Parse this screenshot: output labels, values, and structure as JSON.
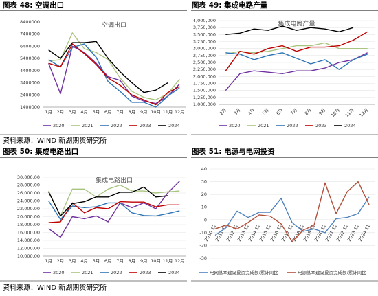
{
  "chart_data": [
    {
      "type": "line",
      "title": "图表 48: 空调出口",
      "inner_title": "空调出口",
      "source": "资料来源：WIND 新湖期货研究所",
      "categories": [
        "1月",
        "2月",
        "3月",
        "4月",
        "5月",
        "6月",
        "7月",
        "8月",
        "9月",
        "10月",
        "11月",
        "12月"
      ],
      "ylim": [
        1400000,
        8400000
      ],
      "yticks": [
        1400000,
        2400000,
        3400000,
        4400000,
        5400000,
        6400000,
        7400000,
        8400000
      ],
      "grid": false,
      "series": [
        {
          "name": "2020",
          "color": "#7030a0",
          "values": [
            5000000,
            2500000,
            6400000,
            5900000,
            5000000,
            3900000,
            3600000,
            2300000,
            1900000,
            1700000,
            2300000,
            3300000
          ]
        },
        {
          "name": "2021",
          "color": "#a9c47f",
          "values": [
            5200000,
            5300000,
            7500000,
            6200000,
            5900000,
            5300000,
            3800000,
            2700000,
            2200000,
            2000000,
            2500000,
            3700000
          ]
        },
        {
          "name": "2022",
          "color": "#2e75b6",
          "values": [
            5300000,
            4700000,
            6300000,
            6600000,
            5500000,
            3500000,
            2700000,
            1800000,
            1800000,
            1400000,
            2300000,
            3000000
          ]
        },
        {
          "name": "2023",
          "color": "#c00000",
          "values": [
            5000000,
            4700000,
            6600000,
            5800000,
            4900000,
            3800000,
            3200000,
            2400000,
            2000000,
            1600000,
            2600000,
            3100000
          ]
        },
        {
          "name": "2024",
          "color": "#000000",
          "values": [
            6100000,
            5400000,
            6700000,
            6700000,
            6800000,
            5400000,
            4300000,
            3400000,
            2600000,
            2800000,
            3400000,
            null
          ]
        }
      ]
    },
    {
      "type": "line",
      "title": "图表 49: 集成电路产量",
      "inner_title": "集成电路产量",
      "categories": [
        "2月",
        "3月",
        "4月",
        "5月",
        "6月",
        "7月",
        "8月",
        "9月",
        "10月",
        "11月",
        "12月"
      ],
      "ylim": [
        1000000,
        4000000
      ],
      "yticks": [
        {
          "value": 1000000,
          "label": "1,000,000"
        },
        {
          "value": 1250000,
          "label": "1,250,000"
        },
        {
          "value": 1500000,
          "label": "1,500,000"
        },
        {
          "value": 1750000,
          "label": "1,750,000"
        },
        {
          "value": 2000000,
          "label": "2,000,000"
        },
        {
          "value": 2250000,
          "label": "2,250,000"
        },
        {
          "value": 2500000,
          "label": "2,500,000"
        },
        {
          "value": 2750000,
          "label": "2,750,000"
        },
        {
          "value": 3000000,
          "label": "3,000,000"
        },
        {
          "value": 3250000,
          "label": "3,250,000"
        },
        {
          "value": 3500000,
          "label": "3,500,000"
        },
        {
          "value": 3750000,
          "label": "3,750,000"
        },
        {
          "value": 4000000,
          "label": "4,000,000"
        }
      ],
      "grid": true,
      "series": [
        {
          "name": "2020",
          "color": "#7030a0",
          "values": [
            1500000,
            2100000,
            2200000,
            2150000,
            2100000,
            2200000,
            2200000,
            2300000,
            2500000,
            2600000,
            2850000
          ]
        },
        {
          "name": "2021",
          "color": "#a9c47f",
          "values": [
            2800000,
            2900000,
            2850000,
            2900000,
            3000000,
            3100000,
            3100000,
            3200000,
            3000000,
            3000000,
            3000000
          ]
        },
        {
          "name": "2022",
          "color": "#2e75b6",
          "values": [
            2850000,
            2800000,
            2600000,
            2750000,
            2850000,
            2650000,
            2450000,
            2600000,
            2250000,
            2600000,
            2800000
          ]
        },
        {
          "name": "2023",
          "color": "#c00000",
          "values": [
            2200000,
            2900000,
            2800000,
            3000000,
            3100000,
            2900000,
            3050000,
            3050000,
            3100000,
            3300000,
            3600000
          ]
        },
        {
          "name": "2024",
          "color": "#000000",
          "values": [
            3500000,
            3550000,
            3700000,
            3650000,
            3800000,
            3650000,
            3750000,
            3700000,
            3600000,
            3750000,
            null
          ]
        }
      ]
    },
    {
      "type": "line",
      "title": "图表 50: 集成电路出口",
      "inner_title": "集成电路出口",
      "source": "资料来源：WIND 新湖期货研究所",
      "categories": [
        "1月",
        "2月",
        "3月",
        "4月",
        "5月",
        "6月",
        "7月",
        "8月",
        "9月",
        "10月",
        "11月",
        "12月"
      ],
      "ylim": [
        10000,
        30000
      ],
      "yticks": [
        {
          "value": 10000,
          "label": "10,000.00"
        },
        {
          "value": 12000,
          "label": "12,000.00"
        },
        {
          "value": 14000,
          "label": "14,000.00"
        },
        {
          "value": 16000,
          "label": "16,000.00"
        },
        {
          "value": 18000,
          "label": "18,000.00"
        },
        {
          "value": 20000,
          "label": "20,000.00"
        },
        {
          "value": 22000,
          "label": "22,000.00"
        },
        {
          "value": 24000,
          "label": "24,000.00"
        },
        {
          "value": 26000,
          "label": "26,000.00"
        },
        {
          "value": 28000,
          "label": "28,000.00"
        },
        {
          "value": 30000,
          "label": "30,000.00"
        }
      ],
      "grid": true,
      "series": [
        {
          "name": "2020",
          "color": "#7030a0",
          "values": [
            17000,
            14800,
            20000,
            19500,
            20200,
            18700,
            23500,
            22300,
            23500,
            22000,
            26000,
            29000
          ]
        },
        {
          "name": "2021",
          "color": "#a9c47f",
          "values": [
            26500,
            20200,
            27000,
            27000,
            25000,
            27000,
            28000,
            26500,
            26500,
            26000,
            26300,
            26500
          ]
        },
        {
          "name": "2022",
          "color": "#2e75b6",
          "values": [
            24000,
            19300,
            22700,
            22300,
            22500,
            23500,
            23500,
            21000,
            20300,
            20200,
            20800,
            21500
          ]
        },
        {
          "name": "2023",
          "color": "#c00000",
          "values": [
            18500,
            18700,
            23500,
            21000,
            22300,
            22000,
            23800,
            23700,
            23700,
            22500,
            23000,
            23000
          ]
        },
        {
          "name": "2024",
          "color": "#000000",
          "values": [
            26300,
            20200,
            23300,
            23800,
            25000,
            25000,
            26200,
            26200,
            27500,
            25000,
            25300,
            null
          ]
        }
      ]
    },
    {
      "type": "line",
      "title": "图表 51: 电源与电网投资",
      "categories": [
        "2010-12",
        "2011-12",
        "2012-12",
        "2013-12",
        "2014-12",
        "2015-12",
        "2016-12",
        "2017-12",
        "2018-12",
        "2019-12",
        "2020-12",
        "2021-12",
        "2022-12",
        "2023-12",
        "2024-11"
      ],
      "ylim": [
        -30,
        40
      ],
      "yticks": [
        -30,
        -20,
        -10,
        0,
        10,
        20,
        30,
        40
      ],
      "grid": true,
      "series": [
        {
          "name": "电网基本建设投资完成额:累计同比",
          "color": "#4f81bd",
          "values": [
            -12,
            -6,
            7,
            2,
            6,
            6,
            17,
            -2,
            -9,
            -7,
            -10,
            1,
            2,
            5,
            18
          ]
        },
        {
          "name": "电源基本建设投资完成额:累计同比",
          "color": "#b0503a",
          "values": [
            -7,
            -4,
            -7,
            -2,
            4,
            3,
            -3,
            -17,
            -8,
            -4,
            29,
            5,
            22,
            30,
            12
          ]
        }
      ]
    }
  ]
}
